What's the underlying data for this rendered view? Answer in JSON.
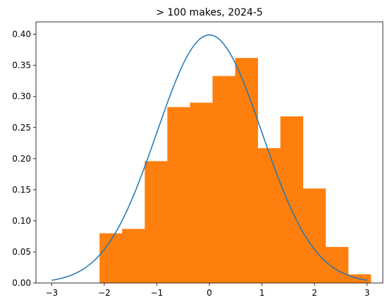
{
  "chart_data": {
    "type": "bar",
    "title": "> 100 makes, 2024-5",
    "xlabel": "",
    "ylabel": "",
    "xlim": [
      -3.3,
      3.3
    ],
    "ylim": [
      0,
      0.42
    ],
    "xticks": [
      -3,
      -2,
      -1,
      0,
      1,
      2,
      3
    ],
    "xtick_labels": [
      "−3",
      "−2",
      "−1",
      "0",
      "1",
      "2",
      "3"
    ],
    "yticks": [
      0,
      0.05,
      0.1,
      0.15,
      0.2,
      0.25,
      0.3,
      0.35,
      0.4
    ],
    "ytick_labels": [
      "0.00",
      "0.05",
      "0.10",
      "0.15",
      "0.20",
      "0.25",
      "0.30",
      "0.35",
      "0.40"
    ],
    "grid": false,
    "bins": [
      {
        "x0": -2.09,
        "x1": -1.66,
        "value": 0.08
      },
      {
        "x0": -1.66,
        "x1": -1.23,
        "value": 0.087
      },
      {
        "x0": -1.23,
        "x1": -0.8,
        "value": 0.196
      },
      {
        "x0": -0.8,
        "x1": -0.37,
        "value": 0.283
      },
      {
        "x0": -0.37,
        "x1": 0.06,
        "value": 0.29
      },
      {
        "x0": 0.06,
        "x1": 0.49,
        "value": 0.333
      },
      {
        "x0": 0.49,
        "x1": 0.92,
        "value": 0.362
      },
      {
        "x0": 0.92,
        "x1": 1.35,
        "value": 0.217
      },
      {
        "x0": 1.35,
        "x1": 1.78,
        "value": 0.268
      },
      {
        "x0": 1.78,
        "x1": 2.21,
        "value": 0.152
      },
      {
        "x0": 2.21,
        "x1": 2.64,
        "value": 0.058
      },
      {
        "x0": 2.64,
        "x1": 3.07,
        "value": 0.014
      }
    ],
    "curve": {
      "type": "line",
      "function": "standard normal pdf",
      "x_range": [
        -3,
        3
      ],
      "peak": 0.399
    },
    "colors": {
      "bars": "#ff7f0e",
      "curve": "#1f77b4",
      "axes": "#000000",
      "background": "#ffffff"
    }
  }
}
